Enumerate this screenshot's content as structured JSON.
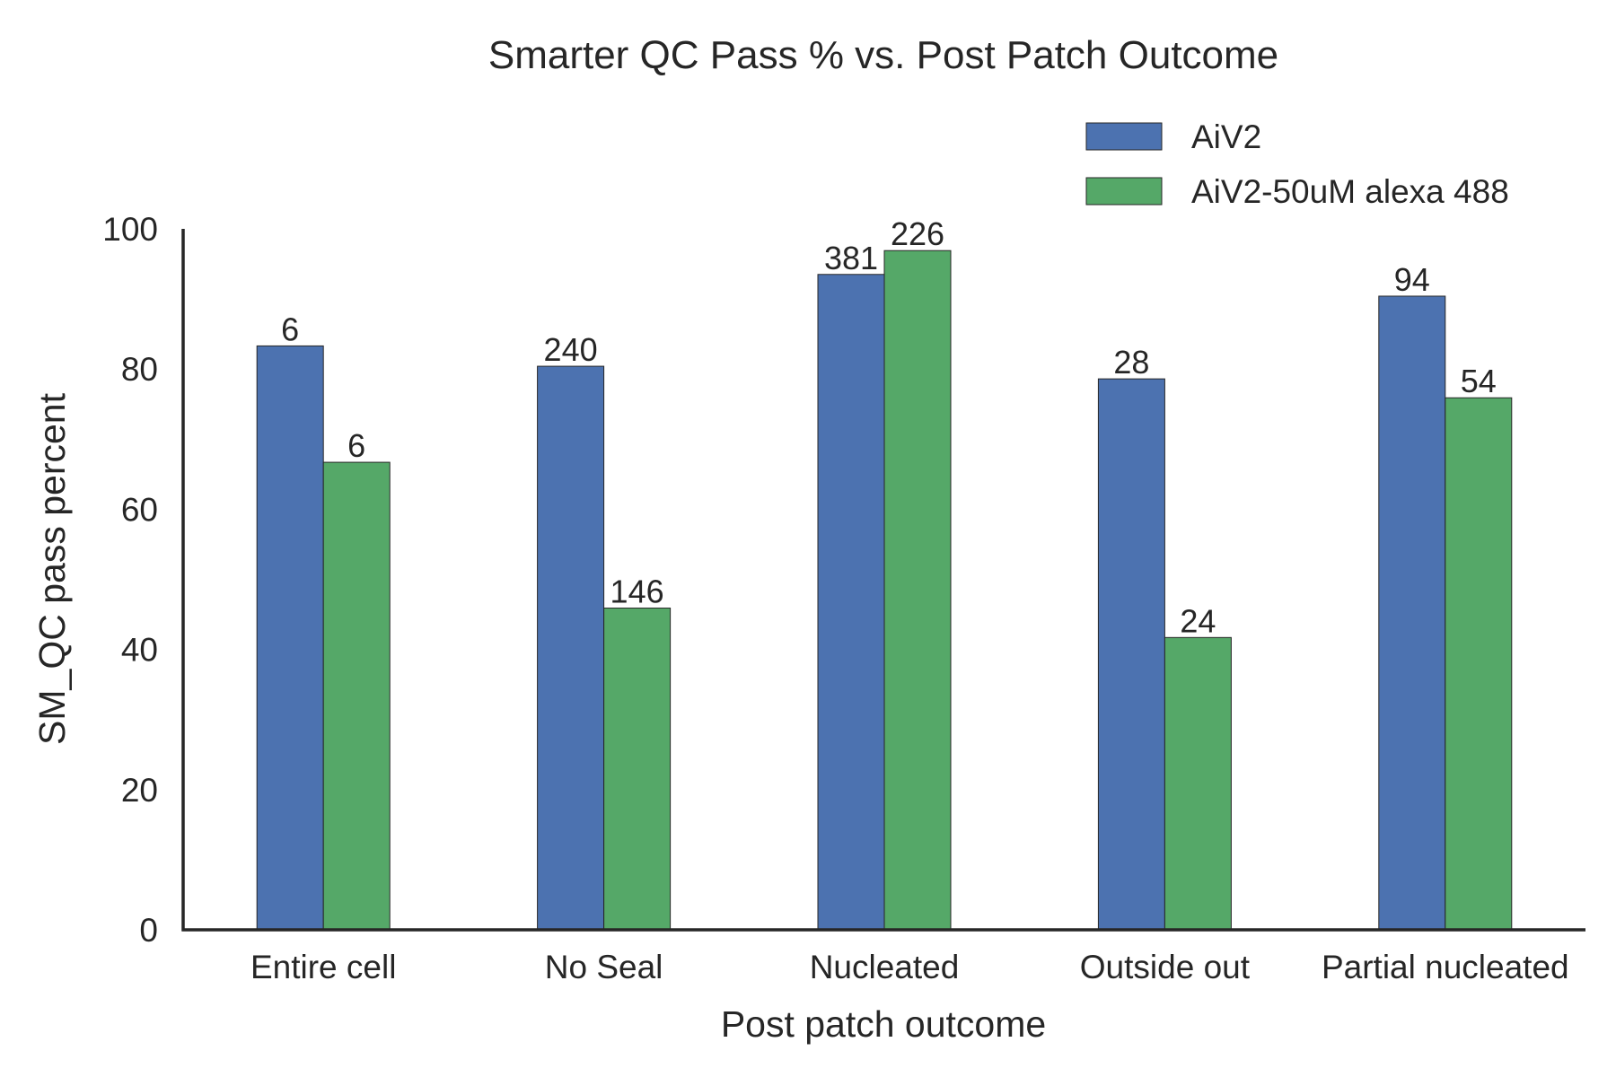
{
  "chart_data": {
    "type": "bar",
    "title": "Smarter QC Pass % vs. Post Patch Outcome",
    "xlabel": "Post patch outcome",
    "ylabel": "SM_QC pass percent",
    "categories": [
      "Entire cell",
      "No Seal",
      "Nucleated",
      "Outside out",
      "Partial nucleated"
    ],
    "ylim": [
      0,
      100
    ],
    "yticks": [
      0,
      20,
      40,
      60,
      80,
      100
    ],
    "grid": false,
    "legend_position": "top-right",
    "series": [
      {
        "name": "AiV2",
        "color": "#4c72b0",
        "values": [
          83.3,
          80.4,
          93.5,
          78.6,
          90.4
        ],
        "labels": [
          "6",
          "240",
          "381",
          "28",
          "94"
        ]
      },
      {
        "name": "AiV2-50uM alexa 488",
        "color": "#55a868",
        "values": [
          66.7,
          45.9,
          96.9,
          41.7,
          75.9
        ],
        "labels": [
          "6",
          "146",
          "226",
          "24",
          "54"
        ]
      }
    ]
  }
}
